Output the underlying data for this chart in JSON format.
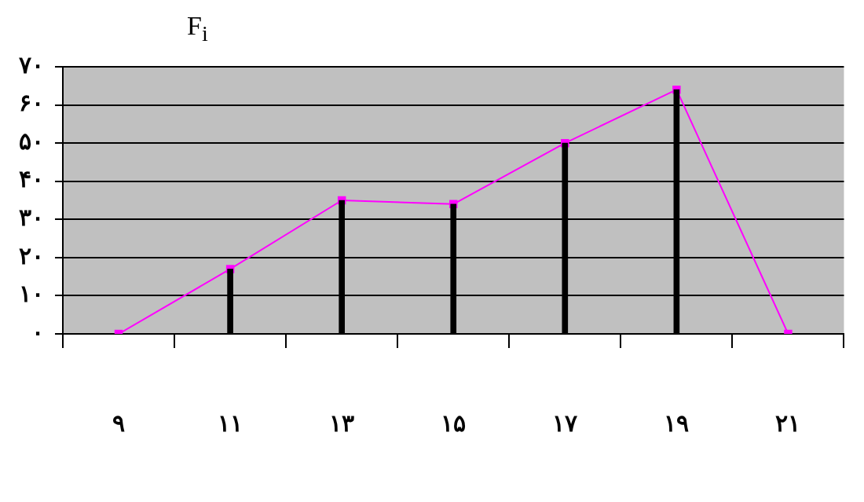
{
  "chart_data": {
    "type": "bar",
    "ylabel": "F$_{i}$",
    "categories": [
      "۹",
      "۱۱",
      "۱۳",
      "۱۵",
      "۱۷",
      "۱۹",
      "۲۱"
    ],
    "series": [
      {
        "color": "#000000",
        "values": [
          null,
          17,
          35,
          34,
          50,
          64,
          null
        ]
      },
      {
        "type": "line",
        "color": "#ff00ff",
        "values": [
          0,
          17,
          35,
          34,
          50,
          64,
          0
        ]
      }
    ],
    "ylim": [
      0,
      70
    ],
    "yticks": [
      {
        "value": 0,
        "label": "۰"
      },
      {
        "value": 10,
        "label": "۱۰"
      },
      {
        "value": 20,
        "label": "۲۰"
      },
      {
        "value": 30,
        "label": "۳۰"
      },
      {
        "value": 40,
        "label": "۴۰"
      },
      {
        "value": 50,
        "label": "۵۰"
      },
      {
        "value": 60,
        "label": "۶۰"
      },
      {
        "value": 70,
        "label": "۷۰"
      }
    ],
    "grid": "y",
    "marker": "square"
  }
}
